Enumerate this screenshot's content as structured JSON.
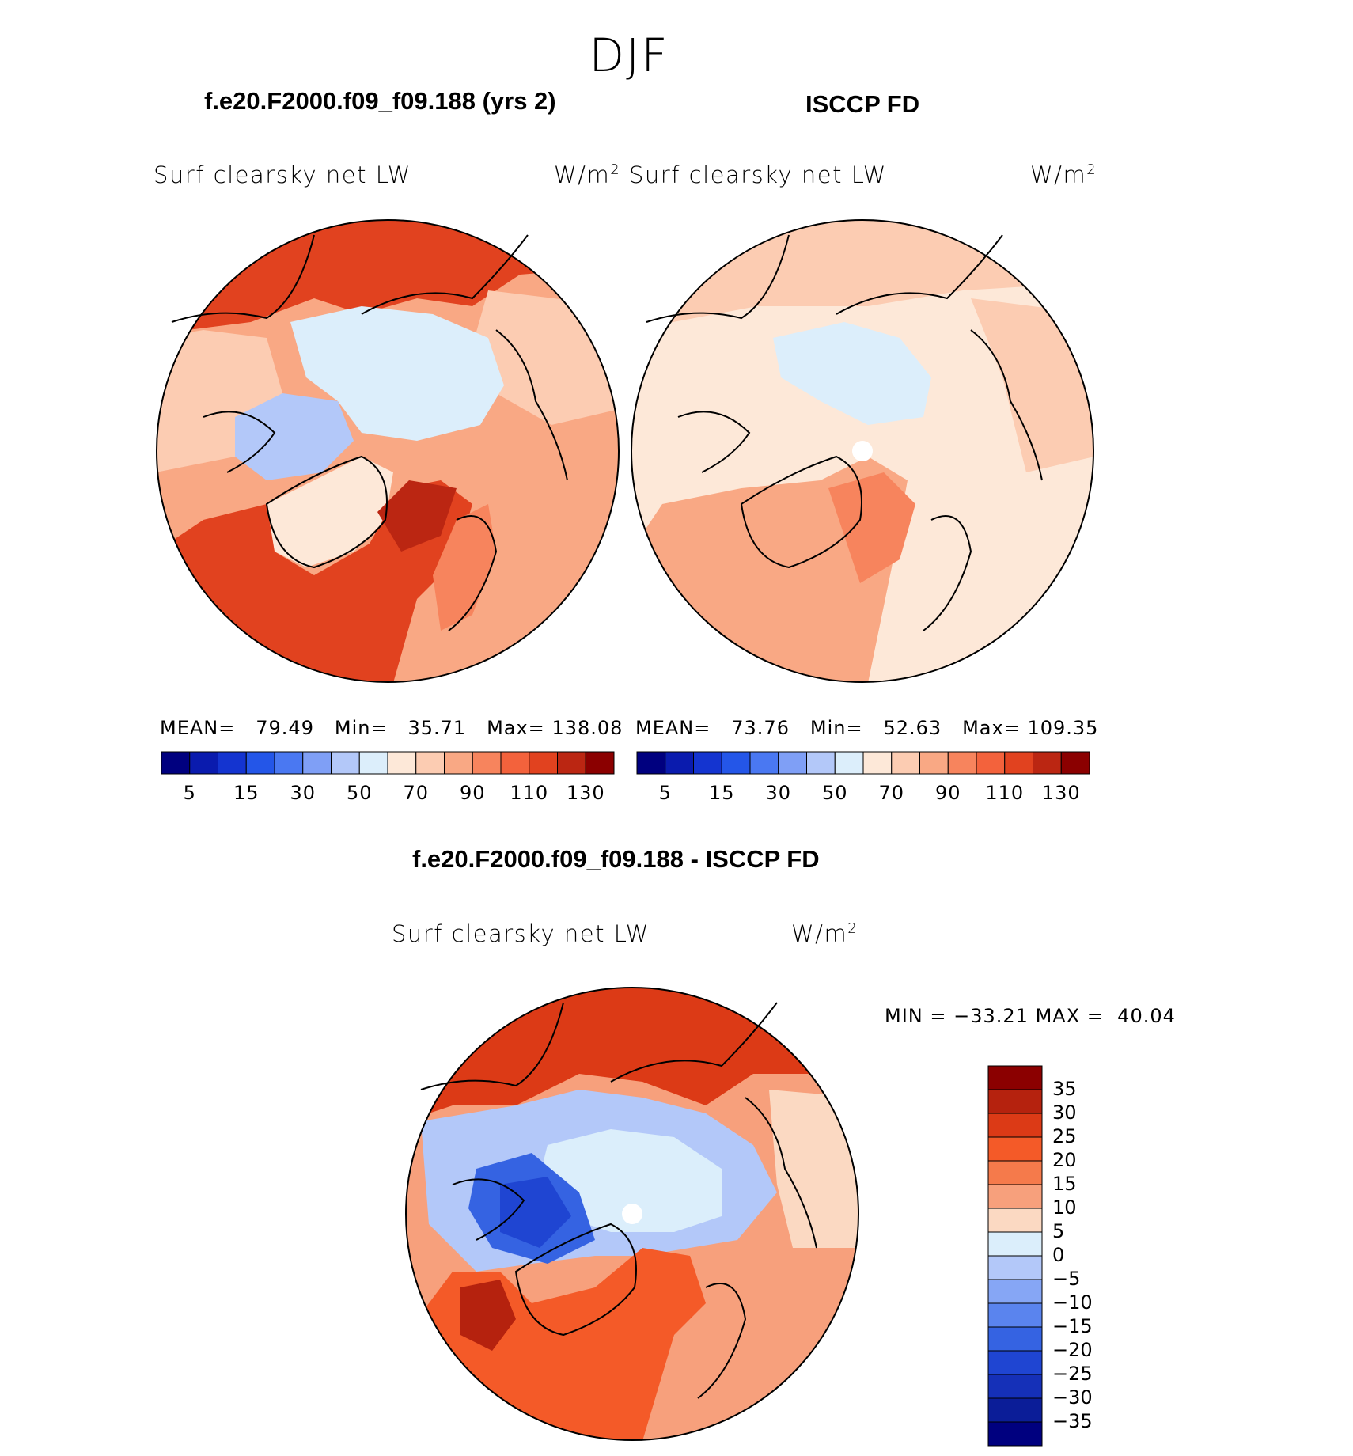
{
  "figure": {
    "season": "DJF",
    "variable": "Surf clearsky net LW",
    "units_base": "W/m",
    "units_exp": "2"
  },
  "panels": [
    {
      "title": "f.e20.F2000.f09_f09.188 (yrs 2)",
      "mean_label": "MEAN=",
      "mean": "79.49",
      "min_label": "Min=",
      "min": "35.71",
      "max_label": "Max=",
      "max": "138.08"
    },
    {
      "title": "ISCCP FD",
      "mean_label": "MEAN=",
      "mean": "73.76",
      "min_label": "Min=",
      "min": "52.63",
      "max_label": "Max=",
      "max": "109.35"
    }
  ],
  "diff_panel": {
    "title": "f.e20.F2000.f09_f09.188 - ISCCP FD",
    "min_label": "MIN =",
    "min": "−33.21",
    "max_label": "MAX =",
    "max": "40.04"
  },
  "colorbars": {
    "main": {
      "colors": [
        "#00007f",
        "#0a1bae",
        "#1434d0",
        "#2456e8",
        "#4a78f2",
        "#7f9ff6",
        "#b3c8f9",
        "#dceefb",
        "#fde8d8",
        "#fcccb2",
        "#f9a884",
        "#f7845d",
        "#f3623c",
        "#e1421f",
        "#bb2612",
        "#8b0000"
      ],
      "tick_labels": [
        "5",
        "15",
        "30",
        "50",
        "70",
        "90",
        "110",
        "130"
      ]
    },
    "diff": {
      "colors": [
        "#8b0000",
        "#b5220e",
        "#dc3a16",
        "#f45a28",
        "#f57a4b",
        "#f7a07c",
        "#fbd9c2",
        "#dbeefb",
        "#b3c8f9",
        "#86a6f5",
        "#5a84ee",
        "#3563e2",
        "#1f45d2",
        "#1530b8",
        "#0b1d98",
        "#00007f"
      ],
      "tick_labels": [
        "35",
        "30",
        "25",
        "20",
        "15",
        "10",
        "5",
        "0",
        "−5",
        "−10",
        "−15",
        "−20",
        "−25",
        "−30",
        "−35"
      ]
    }
  }
}
